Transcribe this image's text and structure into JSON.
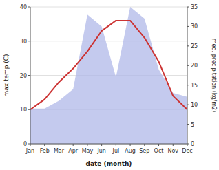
{
  "chart_data": {
    "type": "line",
    "categories": [
      "Jan",
      "Feb",
      "Mar",
      "Apr",
      "May",
      "Jun",
      "Jul",
      "Aug",
      "Sep",
      "Oct",
      "Nov",
      "Dec"
    ],
    "xlabel": "date (month)",
    "ylabel": "max temp (C)",
    "y2label": "med. precipitation (kg/m2)",
    "ylim": [
      0,
      40
    ],
    "yticks": [
      0,
      10,
      20,
      30,
      40
    ],
    "y2lim": [
      0,
      35
    ],
    "y2ticks": [
      0,
      5,
      10,
      15,
      20,
      25,
      30,
      35
    ],
    "grid": true,
    "series": [
      {
        "type": "area",
        "axis": "y2",
        "color": "#b0b8e8",
        "values": [
          9,
          9,
          11,
          14,
          33,
          30,
          17,
          35,
          32,
          19,
          13,
          12
        ]
      },
      {
        "type": "line",
        "color": "#cc3333",
        "values": [
          10,
          13,
          18,
          22,
          27,
          33,
          36,
          36,
          31,
          24,
          14,
          10
        ]
      }
    ]
  }
}
